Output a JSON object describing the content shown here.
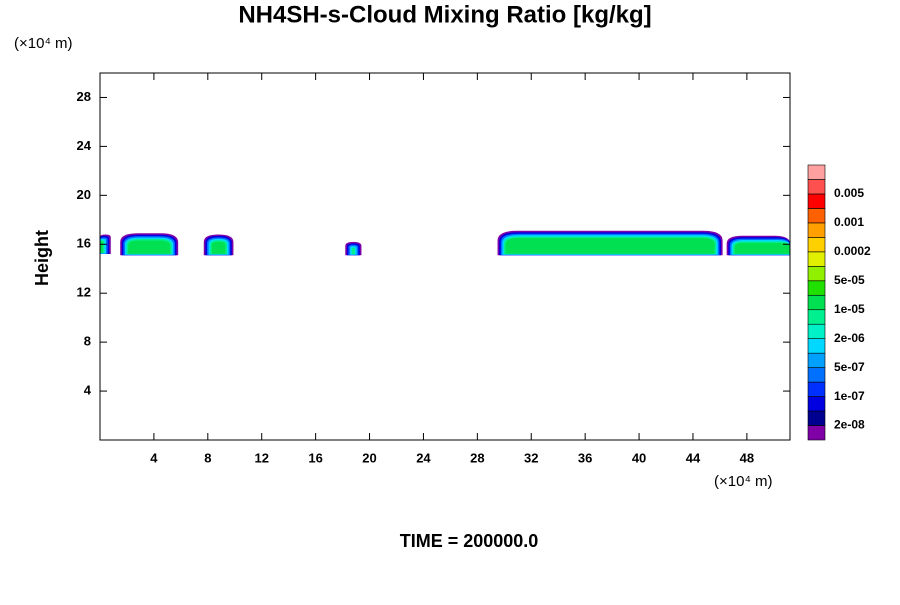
{
  "chart_data": {
    "type": "contour",
    "title": "NH4SH-s-Cloud Mixing Ratio [kg/kg]",
    "y_unit": "(×10⁴ m)",
    "x_unit": "(×10⁴ m)",
    "ylabel": "Height",
    "annotation": "TIME = 200000.0",
    "xlim": [
      0,
      51.2
    ],
    "ylim": [
      0,
      30
    ],
    "xticks": [
      4,
      8,
      12,
      16,
      20,
      24,
      28,
      32,
      36,
      40,
      44,
      48
    ],
    "yticks": [
      4,
      8,
      12,
      16,
      20,
      24,
      28
    ],
    "field": [
      {
        "x0": 0,
        "x1": 0.8,
        "y0": 15.2,
        "y1": 16.8
      },
      {
        "x0": 1.5,
        "x1": 5.8,
        "y0": 15.1,
        "y1": 16.9
      },
      {
        "x0": 7.7,
        "x1": 9.9,
        "y0": 15.1,
        "y1": 16.8
      },
      {
        "x0": 18.2,
        "x1": 19.4,
        "y0": 15.1,
        "y1": 16.2
      },
      {
        "x0": 29.5,
        "x1": 46.2,
        "y0": 15.1,
        "y1": 17.1
      },
      {
        "x0": 46.5,
        "x1": 51.2,
        "y0": 15.1,
        "y1": 16.7
      }
    ],
    "colorbar": {
      "colors": [
        "#8000a8",
        "#000090",
        "#0000e0",
        "#0030ff",
        "#0070ff",
        "#00a0ff",
        "#00d8ff",
        "#00f0c8",
        "#00f090",
        "#00e050",
        "#20e000",
        "#90f000",
        "#e0f000",
        "#ffd000",
        "#ffa000",
        "#ff6000",
        "#ff0000",
        "#ff5050",
        "#ffa0a0"
      ],
      "labels": [
        {
          "value": 2e-08,
          "label": "2e-08"
        },
        {
          "value": 1e-07,
          "label": "1e-07"
        },
        {
          "value": 5e-07,
          "label": "5e-07"
        },
        {
          "value": 2e-06,
          "label": "2e-06"
        },
        {
          "value": 1e-05,
          "label": "1e-05"
        },
        {
          "value": 5e-05,
          "label": "5e-05"
        },
        0.0002,
        0.001,
        0.005
      ]
    }
  }
}
